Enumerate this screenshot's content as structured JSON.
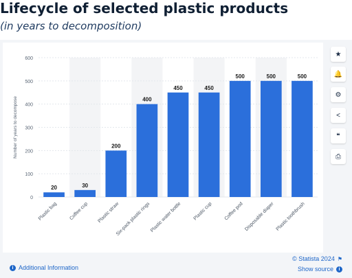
{
  "header": {
    "title": "Lifecycle of selected plastic products",
    "subtitle": "(in years to decomposition)"
  },
  "sidebar": {
    "buttons": [
      {
        "name": "star-icon",
        "glyph": "★"
      },
      {
        "name": "bell-icon",
        "glyph": "🔔"
      },
      {
        "name": "gear-icon",
        "glyph": "⚙"
      },
      {
        "name": "share-icon",
        "glyph": "<"
      },
      {
        "name": "quote-icon",
        "glyph": "❝"
      },
      {
        "name": "print-icon",
        "glyph": "⎙"
      }
    ]
  },
  "footer": {
    "additional_info": "Additional Information",
    "copyright": "© Statista 2024",
    "show_source": "Show source"
  },
  "colors": {
    "bar": "#2b6fdb",
    "grid": "#e3e7ec",
    "alt_band": "#f3f4f6",
    "link": "#1e66c8"
  },
  "chart_data": {
    "type": "bar",
    "title": "Lifecycle of selected plastic products",
    "subtitle": "(in years to decomposition)",
    "xlabel": "",
    "ylabel": "Number of years to decompose",
    "ylim": [
      0,
      600
    ],
    "yticks": [
      0,
      100,
      200,
      300,
      400,
      500,
      600
    ],
    "grid": true,
    "categories": [
      "Plastic bag",
      "Coffee cup",
      "Plastic straw",
      "Six-pack plastic rings",
      "Plastic water bottle",
      "Plastic cup",
      "Coffee pod",
      "Disposable diaper",
      "Plastic toothbrush"
    ],
    "values": [
      20,
      30,
      200,
      400,
      450,
      450,
      500,
      500,
      500
    ]
  }
}
